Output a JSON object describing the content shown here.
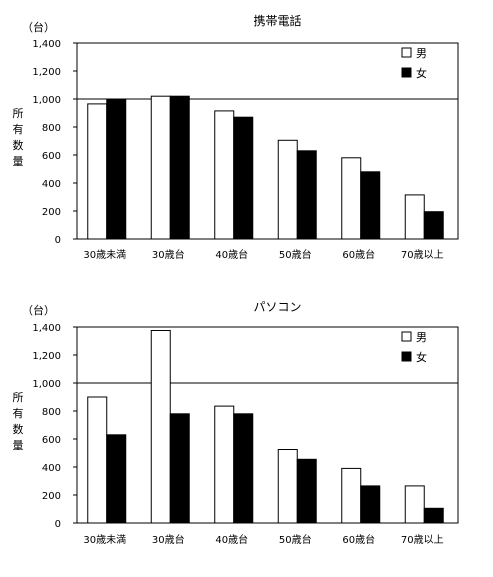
{
  "chart_data": [
    {
      "type": "bar",
      "title": "携帯電話",
      "unit": "（台）",
      "ylabel": "所有数量",
      "ylim": [
        0,
        1400
      ],
      "yticks": [
        "0",
        "200",
        "400",
        "600",
        "800",
        "1,000",
        "1,200",
        "1,400"
      ],
      "reference_line": 1000,
      "categories": [
        "30歳未満",
        "30歳台",
        "40歳台",
        "50歳台",
        "60歳台",
        "70歳以上"
      ],
      "series": [
        {
          "name": "男",
          "color": "#ffffff",
          "values": [
            965,
            1020,
            915,
            705,
            580,
            315
          ]
        },
        {
          "name": "女",
          "color": "#000000",
          "values": [
            1000,
            1020,
            870,
            630,
            480,
            195
          ]
        }
      ],
      "legend_position": "top-right"
    },
    {
      "type": "bar",
      "title": "パソコン",
      "unit": "（台）",
      "ylabel": "所有数量",
      "ylim": [
        0,
        1400
      ],
      "yticks": [
        "0",
        "200",
        "400",
        "600",
        "800",
        "1,000",
        "1,200",
        "1,400"
      ],
      "reference_line": 1000,
      "categories": [
        "30歳未満",
        "30歳台",
        "40歳台",
        "50歳台",
        "60歳台",
        "70歳以上"
      ],
      "series": [
        {
          "name": "男",
          "color": "#ffffff",
          "values": [
            900,
            1375,
            835,
            525,
            390,
            265
          ]
        },
        {
          "name": "女",
          "color": "#000000",
          "values": [
            630,
            780,
            780,
            455,
            265,
            105
          ]
        }
      ],
      "legend_position": "top-right"
    }
  ]
}
